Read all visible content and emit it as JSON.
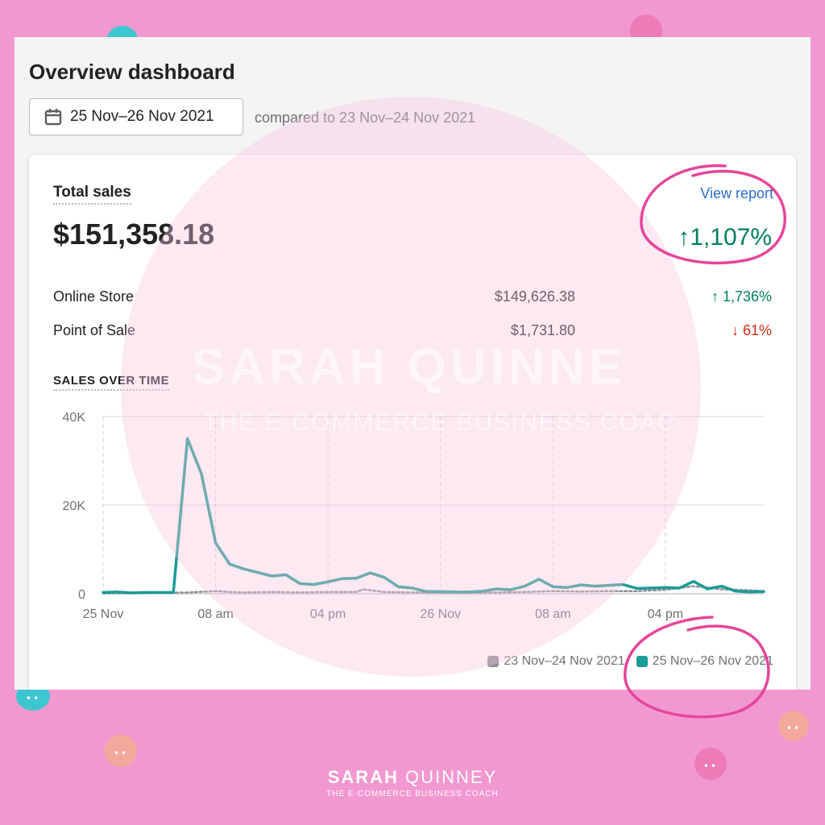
{
  "page": {
    "title": "Overview dashboard",
    "date_range": "25 Nov–26 Nov 2021",
    "compared_to": "compared to 23 Nov–24 Nov 2021"
  },
  "card": {
    "title": "Total sales",
    "view_report": "View report",
    "total_value": "$151,358.18",
    "total_change": "↑1,107%",
    "channels": [
      {
        "name": "Online Store",
        "value": "$149,626.38",
        "change": "↑ 1,736%",
        "direction": "up"
      },
      {
        "name": "Point of Sale",
        "value": "$1,731.80",
        "change": "↓ 61%",
        "direction": "down"
      }
    ],
    "chart_title": "SALES OVER TIME"
  },
  "colors": {
    "current_series": "#1b9c95",
    "previous_series": "#8c9196",
    "up": "#008060",
    "down": "#d72c0d",
    "link": "#2c6ecb",
    "background": "#f298d0",
    "annotation": "#e5469b"
  },
  "icons": {
    "date_button": "calendar-icon"
  },
  "chart_data": {
    "type": "line",
    "y_ticks": [
      "40K",
      "20K",
      "0"
    ],
    "ylim": [
      0,
      40000
    ],
    "x_tick_labels": [
      "25 Nov",
      "08 am",
      "04 pm",
      "26 Nov",
      "08 am",
      "04 pm"
    ],
    "x_tick_hours": [
      0,
      8,
      16,
      24,
      32,
      40
    ],
    "series": [
      {
        "name": "23 Nov–24 Nov 2021",
        "hours": [
          0,
          2,
          4,
          6,
          8,
          9,
          10,
          12,
          14,
          16,
          18,
          18.5,
          20,
          22,
          24,
          26,
          28,
          30,
          32,
          34,
          36,
          38,
          40,
          42,
          43,
          44,
          46,
          47
        ],
        "values": [
          100,
          150,
          200,
          300,
          600,
          400,
          300,
          400,
          300,
          400,
          400,
          1000,
          400,
          300,
          200,
          200,
          300,
          400,
          600,
          500,
          600,
          600,
          900,
          1700,
          1400,
          1000,
          800,
          600
        ]
      },
      {
        "name": "25 Nov–26 Nov 2021",
        "hours": [
          0,
          1,
          2,
          3,
          4,
          5,
          6,
          7,
          8,
          9,
          10,
          11,
          12,
          13,
          14,
          15,
          16,
          17,
          18,
          19,
          20,
          21,
          22,
          23,
          24,
          25,
          26,
          27,
          28,
          29,
          30,
          31,
          32,
          33,
          34,
          35,
          36,
          37,
          38,
          39,
          40,
          41,
          42,
          43,
          44,
          45,
          46,
          47
        ],
        "values": [
          300,
          400,
          200,
          300,
          300,
          300,
          35000,
          27000,
          11500,
          6700,
          5600,
          4800,
          4000,
          4300,
          2300,
          2100,
          2700,
          3400,
          3500,
          4700,
          3700,
          1600,
          1300,
          500,
          500,
          400,
          400,
          600,
          1100,
          900,
          1700,
          3300,
          1600,
          1400,
          2000,
          1700,
          1900,
          2100,
          1200,
          1300,
          1400,
          1300,
          2800,
          1100,
          1700,
          600,
          400,
          500
        ]
      }
    ]
  },
  "brand": {
    "wm_name": "SARAH QUINNE",
    "wm_tagline": "THE E-COMMERCE BUSINESS COAC",
    "footer_name_bold": "SARAH",
    "footer_name_light": "QUINNEY",
    "footer_tagline": "THE E-COMMERCE BUSINESS COACH"
  }
}
